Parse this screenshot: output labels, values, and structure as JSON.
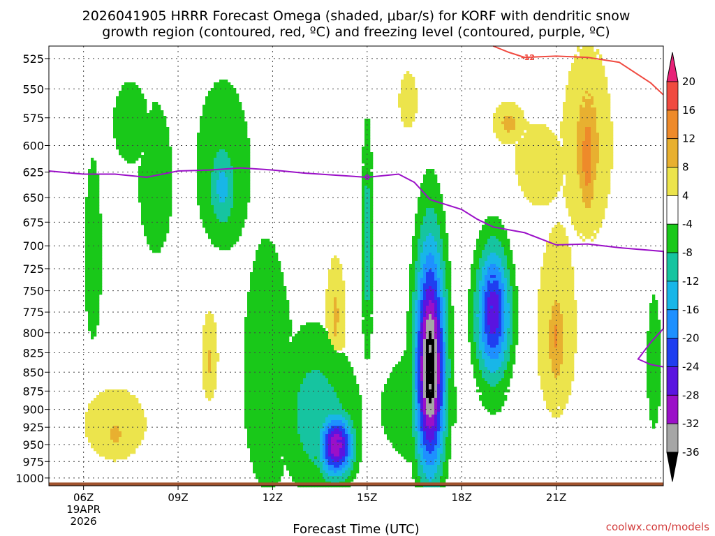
{
  "chart_data": {
    "type": "heatmap",
    "title_line1": "2026041905 HRRR Forecast Omega (shaded, μbar/s) for KORF with dendritic snow",
    "title_line2": "growth region (contoured, red, ºC) and freezing level (contoured, purple, ºC)",
    "xlabel": "Forecast Time (UTC)",
    "credit": "coolwx.com/models",
    "x_range": [
      4.9,
      24.4
    ],
    "y_range": [
      1012,
      515
    ],
    "x_ticks": [
      {
        "hour": 6,
        "label": "06Z",
        "sub1": "19APR",
        "sub2": "2026"
      },
      {
        "hour": 9,
        "label": "09Z"
      },
      {
        "hour": 12,
        "label": "12Z"
      },
      {
        "hour": 15,
        "label": "15Z"
      },
      {
        "hour": 18,
        "label": "18Z"
      },
      {
        "hour": 21,
        "label": "21Z"
      }
    ],
    "y_ticks": [
      525,
      550,
      575,
      600,
      625,
      650,
      675,
      700,
      725,
      750,
      775,
      800,
      825,
      850,
      875,
      900,
      925,
      950,
      975,
      1000
    ],
    "levels": [
      -40,
      -36,
      -32,
      -28,
      -24,
      -20,
      -16,
      -12,
      -8,
      -4,
      4,
      8,
      12,
      16,
      20,
      24
    ],
    "level_colors": [
      "#000000",
      "#a6a6a6",
      "#9b10c8",
      "#5a14e0",
      "#1f3ef0",
      "#1e90ff",
      "#18b6e8",
      "#16c4a0",
      "#19c819",
      "#ffffff",
      "#ece44c",
      "#e8b030",
      "#ee8a2a",
      "#f04a40",
      "#e82278"
    ],
    "colorbar_labels": [
      20,
      16,
      12,
      8,
      4,
      -4,
      -8,
      -12,
      -16,
      -20,
      -24,
      -28,
      -32,
      -36
    ],
    "freezing_level": {
      "label": "0",
      "color": "#9b10c8",
      "points": [
        [
          4.9,
          624
        ],
        [
          6,
          627
        ],
        [
          7,
          627
        ],
        [
          8,
          630
        ],
        [
          9,
          624
        ],
        [
          10,
          623
        ],
        [
          11,
          621
        ],
        [
          12,
          623
        ],
        [
          13,
          626
        ],
        [
          14,
          628
        ],
        [
          15,
          630
        ],
        [
          16,
          627
        ],
        [
          16.5,
          635
        ],
        [
          17,
          652
        ],
        [
          18,
          662
        ],
        [
          18.5,
          672
        ],
        [
          19,
          680
        ],
        [
          20,
          686
        ],
        [
          21,
          699
        ],
        [
          22,
          698
        ],
        [
          23,
          702
        ],
        [
          24.4,
          706
        ],
        [
          24.4,
          795
        ],
        [
          24,
          812
        ],
        [
          23.6,
          833
        ],
        [
          24,
          840
        ],
        [
          24.4,
          843
        ]
      ]
    },
    "dgz_contour": {
      "label": "-12",
      "color": "#f04a40",
      "points": [
        [
          19,
          515
        ],
        [
          19.5,
          520
        ],
        [
          20,
          524
        ],
        [
          21,
          523
        ],
        [
          22,
          524
        ],
        [
          23,
          528
        ],
        [
          24,
          545
        ],
        [
          24.4,
          555
        ]
      ]
    },
    "ground": {
      "color": "#a0522d",
      "top_p": 1007
    },
    "omega_blobs": [
      {
        "cx": 6.3,
        "cy": 715,
        "rx": 0.55,
        "ry": 200,
        "v": -5.5
      },
      {
        "cx": 8.3,
        "cy": 640,
        "rx": 1.0,
        "ry": 140,
        "v": -5.5
      },
      {
        "cx": 7.5,
        "cy": 580,
        "rx": 1.4,
        "ry": 90,
        "v": -5
      },
      {
        "cx": 10.4,
        "cy": 620,
        "rx": 1.3,
        "ry": 120,
        "v": -7
      },
      {
        "cx": 10.4,
        "cy": 640,
        "rx": 0.6,
        "ry": 60,
        "v": -13
      },
      {
        "cx": 11.8,
        "cy": 850,
        "rx": 1.5,
        "ry": 330,
        "v": -5.5
      },
      {
        "cx": 13.4,
        "cy": 905,
        "rx": 1.6,
        "ry": 150,
        "v": -10
      },
      {
        "cx": 14.0,
        "cy": 952,
        "rx": 0.7,
        "ry": 60,
        "v": -28
      },
      {
        "cx": 14.1,
        "cy": 952,
        "rx": 0.35,
        "ry": 30,
        "v": -30
      },
      {
        "cx": 15.0,
        "cy": 700,
        "rx": 0.35,
        "ry": 235,
        "v": -5.5
      },
      {
        "cx": 15.0,
        "cy": 700,
        "rx": 0.22,
        "ry": 120,
        "v": -12
      },
      {
        "cx": 16.5,
        "cy": 900,
        "rx": 2.0,
        "ry": 120,
        "v": -6
      },
      {
        "cx": 17.0,
        "cy": 840,
        "rx": 1.0,
        "ry": 250,
        "v": -5
      },
      {
        "cx": 17.0,
        "cy": 845,
        "rx": 0.6,
        "ry": 180,
        "v": -35
      },
      {
        "cx": 17.0,
        "cy": 845,
        "rx": 0.3,
        "ry": 100,
        "v": -38
      },
      {
        "cx": 19.0,
        "cy": 820,
        "rx": 1.3,
        "ry": 180,
        "v": -5
      },
      {
        "cx": 19.0,
        "cy": 780,
        "rx": 0.7,
        "ry": 100,
        "v": -24
      },
      {
        "cx": 19.0,
        "cy": 760,
        "rx": 0.3,
        "ry": 50,
        "v": -26
      },
      {
        "cx": 14.0,
        "cy": 785,
        "rx": 0.6,
        "ry": 130,
        "v": 6
      },
      {
        "cx": 14.0,
        "cy": 780,
        "rx": 0.2,
        "ry": 60,
        "v": 10
      },
      {
        "cx": 10.0,
        "cy": 830,
        "rx": 0.55,
        "ry": 110,
        "v": 5.5
      },
      {
        "cx": 10.0,
        "cy": 835,
        "rx": 0.15,
        "ry": 50,
        "v": 9
      },
      {
        "cx": 7.0,
        "cy": 920,
        "rx": 1.8,
        "ry": 90,
        "v": 6
      },
      {
        "cx": 7.0,
        "cy": 935,
        "rx": 0.6,
        "ry": 40,
        "v": 9
      },
      {
        "cx": 21.0,
        "cy": 800,
        "rx": 1.1,
        "ry": 180,
        "v": 6
      },
      {
        "cx": 21.0,
        "cy": 810,
        "rx": 0.5,
        "ry": 110,
        "v": 10
      },
      {
        "cx": 21.0,
        "cy": 805,
        "rx": 0.2,
        "ry": 40,
        "v": 14
      },
      {
        "cx": 22.0,
        "cy": 600,
        "rx": 1.3,
        "ry": 140,
        "v": 6
      },
      {
        "cx": 22.0,
        "cy": 600,
        "rx": 0.8,
        "ry": 110,
        "v": 9
      },
      {
        "cx": 22.0,
        "cy": 610,
        "rx": 0.4,
        "ry": 80,
        "v": 14
      },
      {
        "cx": 20.5,
        "cy": 620,
        "rx": 1.6,
        "ry": 80,
        "v": 5.5
      },
      {
        "cx": 19.5,
        "cy": 580,
        "rx": 0.7,
        "ry": 25,
        "v": 9
      },
      {
        "cx": 16.3,
        "cy": 560,
        "rx": 0.6,
        "ry": 50,
        "v": 5.5
      },
      {
        "cx": 24.1,
        "cy": 840,
        "rx": 0.4,
        "ry": 160,
        "v": -6
      }
    ]
  }
}
